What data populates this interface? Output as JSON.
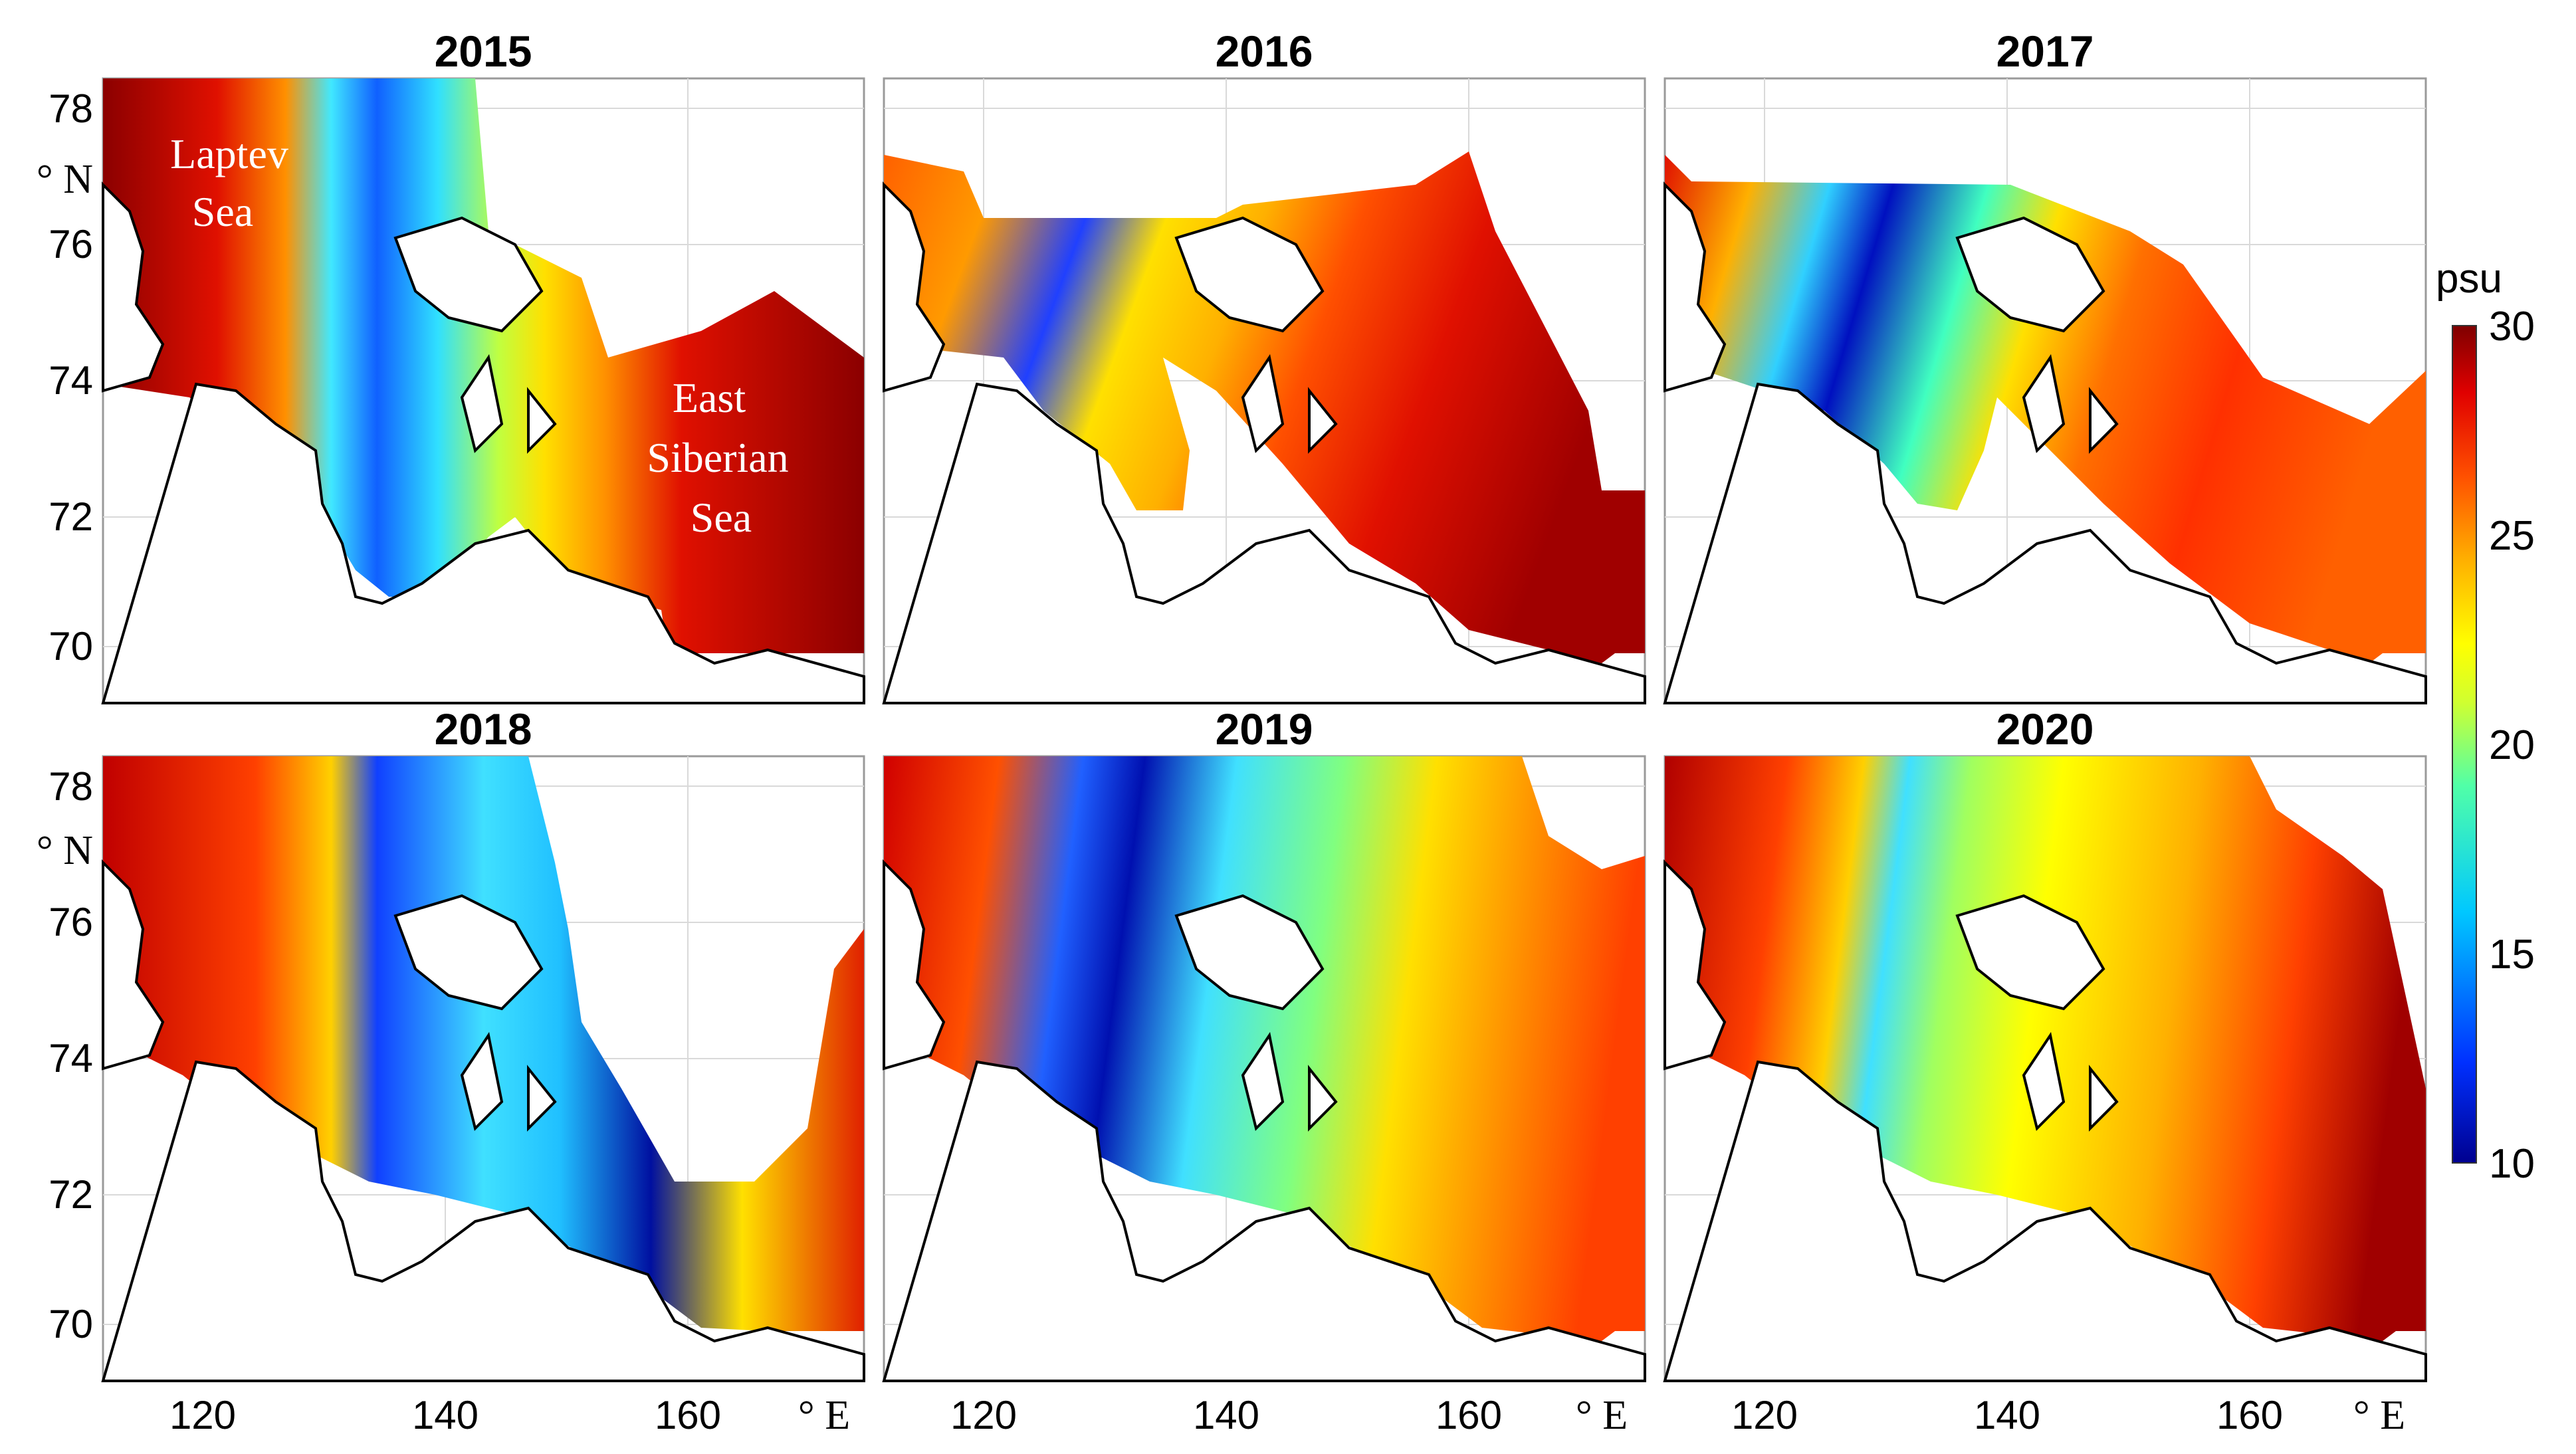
{
  "panels": [
    {
      "title": "2015",
      "region_labels": [
        "Laptev",
        "Sea",
        "East",
        "Siberian",
        "Sea"
      ]
    },
    {
      "title": "2016"
    },
    {
      "title": "2017"
    },
    {
      "title": "2018"
    },
    {
      "title": "2019"
    },
    {
      "title": "2020"
    }
  ],
  "axes": {
    "lat_ticks": [
      "78",
      "76",
      "74",
      "72",
      "70"
    ],
    "lon_ticks": [
      "120",
      "140",
      "160"
    ],
    "lat_unit": "° N",
    "lon_unit": "° E"
  },
  "colorbar": {
    "unit": "psu",
    "ticks": [
      "30",
      "25",
      "20",
      "15",
      "10"
    ],
    "range": [
      10,
      30
    ],
    "colors": [
      "#00008f",
      "#0040ff",
      "#00c8ff",
      "#40ffbf",
      "#c0ff40",
      "#ffff00",
      "#ffbf00",
      "#ff8000",
      "#ff2000",
      "#c00000",
      "#7f0000"
    ]
  },
  "map": {
    "lon_range": [
      110,
      172
    ],
    "lat_range": [
      69.2,
      78.5
    ],
    "variable": "salinity"
  }
}
